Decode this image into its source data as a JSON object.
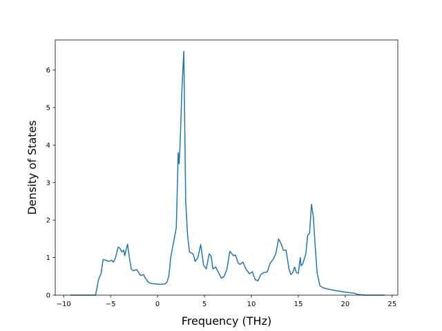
{
  "chart_data": {
    "type": "line",
    "title": "",
    "xlabel": "Frequency (THz)",
    "ylabel": "Density of States",
    "xlim": [
      -10.9,
      25.6
    ],
    "ylim": [
      0,
      6.8
    ],
    "xticks": [
      -10,
      -5,
      0,
      5,
      10,
      15,
      20,
      25
    ],
    "yticks": [
      0,
      1,
      2,
      3,
      4,
      5,
      6
    ],
    "grid": false,
    "line_color": "#1f77b4",
    "series": [
      {
        "x": [
          -9.3,
          -6.6,
          -6.3,
          -6.0,
          -5.8,
          -5.5,
          -5.2,
          -4.9,
          -4.7,
          -4.5,
          -4.2,
          -4.0,
          -3.8,
          -3.6,
          -3.5,
          -3.2,
          -3.0,
          -2.8,
          -2.6,
          -2.2,
          -2.0,
          -1.8,
          -1.5,
          -1.3,
          -1.0,
          -0.7,
          -0.3,
          0.0,
          0.4,
          0.8,
          1.0,
          1.2,
          1.4,
          1.7,
          2.0,
          2.2,
          2.3,
          2.4,
          2.6,
          2.8,
          3.0,
          3.2,
          3.4,
          3.8,
          4.0,
          4.3,
          4.6,
          4.9,
          5.2,
          5.5,
          5.7,
          5.9,
          6.2,
          6.5,
          6.8,
          7.1,
          7.4,
          7.7,
          8.1,
          8.3,
          8.6,
          8.8,
          9.1,
          9.4,
          9.8,
          10.1,
          10.4,
          10.7,
          11.0,
          11.3,
          11.7,
          12.0,
          12.3,
          12.6,
          12.9,
          13.2,
          13.4,
          13.7,
          14.0,
          14.2,
          14.4,
          14.6,
          14.8,
          15.0,
          15.2,
          15.3,
          15.5,
          15.8,
          16.0,
          16.2,
          16.4,
          16.6,
          16.8,
          17.0,
          17.3,
          17.6,
          18.0,
          19.0,
          20.0,
          21.0,
          21.3,
          22.0,
          24.2
        ],
        "y": [
          0.0,
          0.0,
          0.4,
          0.6,
          0.95,
          0.93,
          0.9,
          0.93,
          0.88,
          0.98,
          1.28,
          1.25,
          1.15,
          1.2,
          1.05,
          1.36,
          1.0,
          0.7,
          0.65,
          0.68,
          0.6,
          0.52,
          0.55,
          0.45,
          0.35,
          0.31,
          0.3,
          0.29,
          0.29,
          0.3,
          0.35,
          0.5,
          1.0,
          1.4,
          1.8,
          3.8,
          3.5,
          4.0,
          5.5,
          6.5,
          2.5,
          1.6,
          1.15,
          1.1,
          0.9,
          1.0,
          1.35,
          0.8,
          0.7,
          1.1,
          1.05,
          0.7,
          0.75,
          0.6,
          0.45,
          0.5,
          0.7,
          1.17,
          1.05,
          1.07,
          0.85,
          0.82,
          0.88,
          0.7,
          0.57,
          0.62,
          0.42,
          0.38,
          0.55,
          0.6,
          0.62,
          0.85,
          0.95,
          1.1,
          1.5,
          1.35,
          1.2,
          1.2,
          0.7,
          0.55,
          0.6,
          0.75,
          0.6,
          0.58,
          1.0,
          0.78,
          0.85,
          1.1,
          1.6,
          1.65,
          2.42,
          2.1,
          1.3,
          0.6,
          0.25,
          0.2,
          0.17,
          0.12,
          0.08,
          0.05,
          0.02,
          0.0,
          0.0
        ]
      }
    ]
  }
}
